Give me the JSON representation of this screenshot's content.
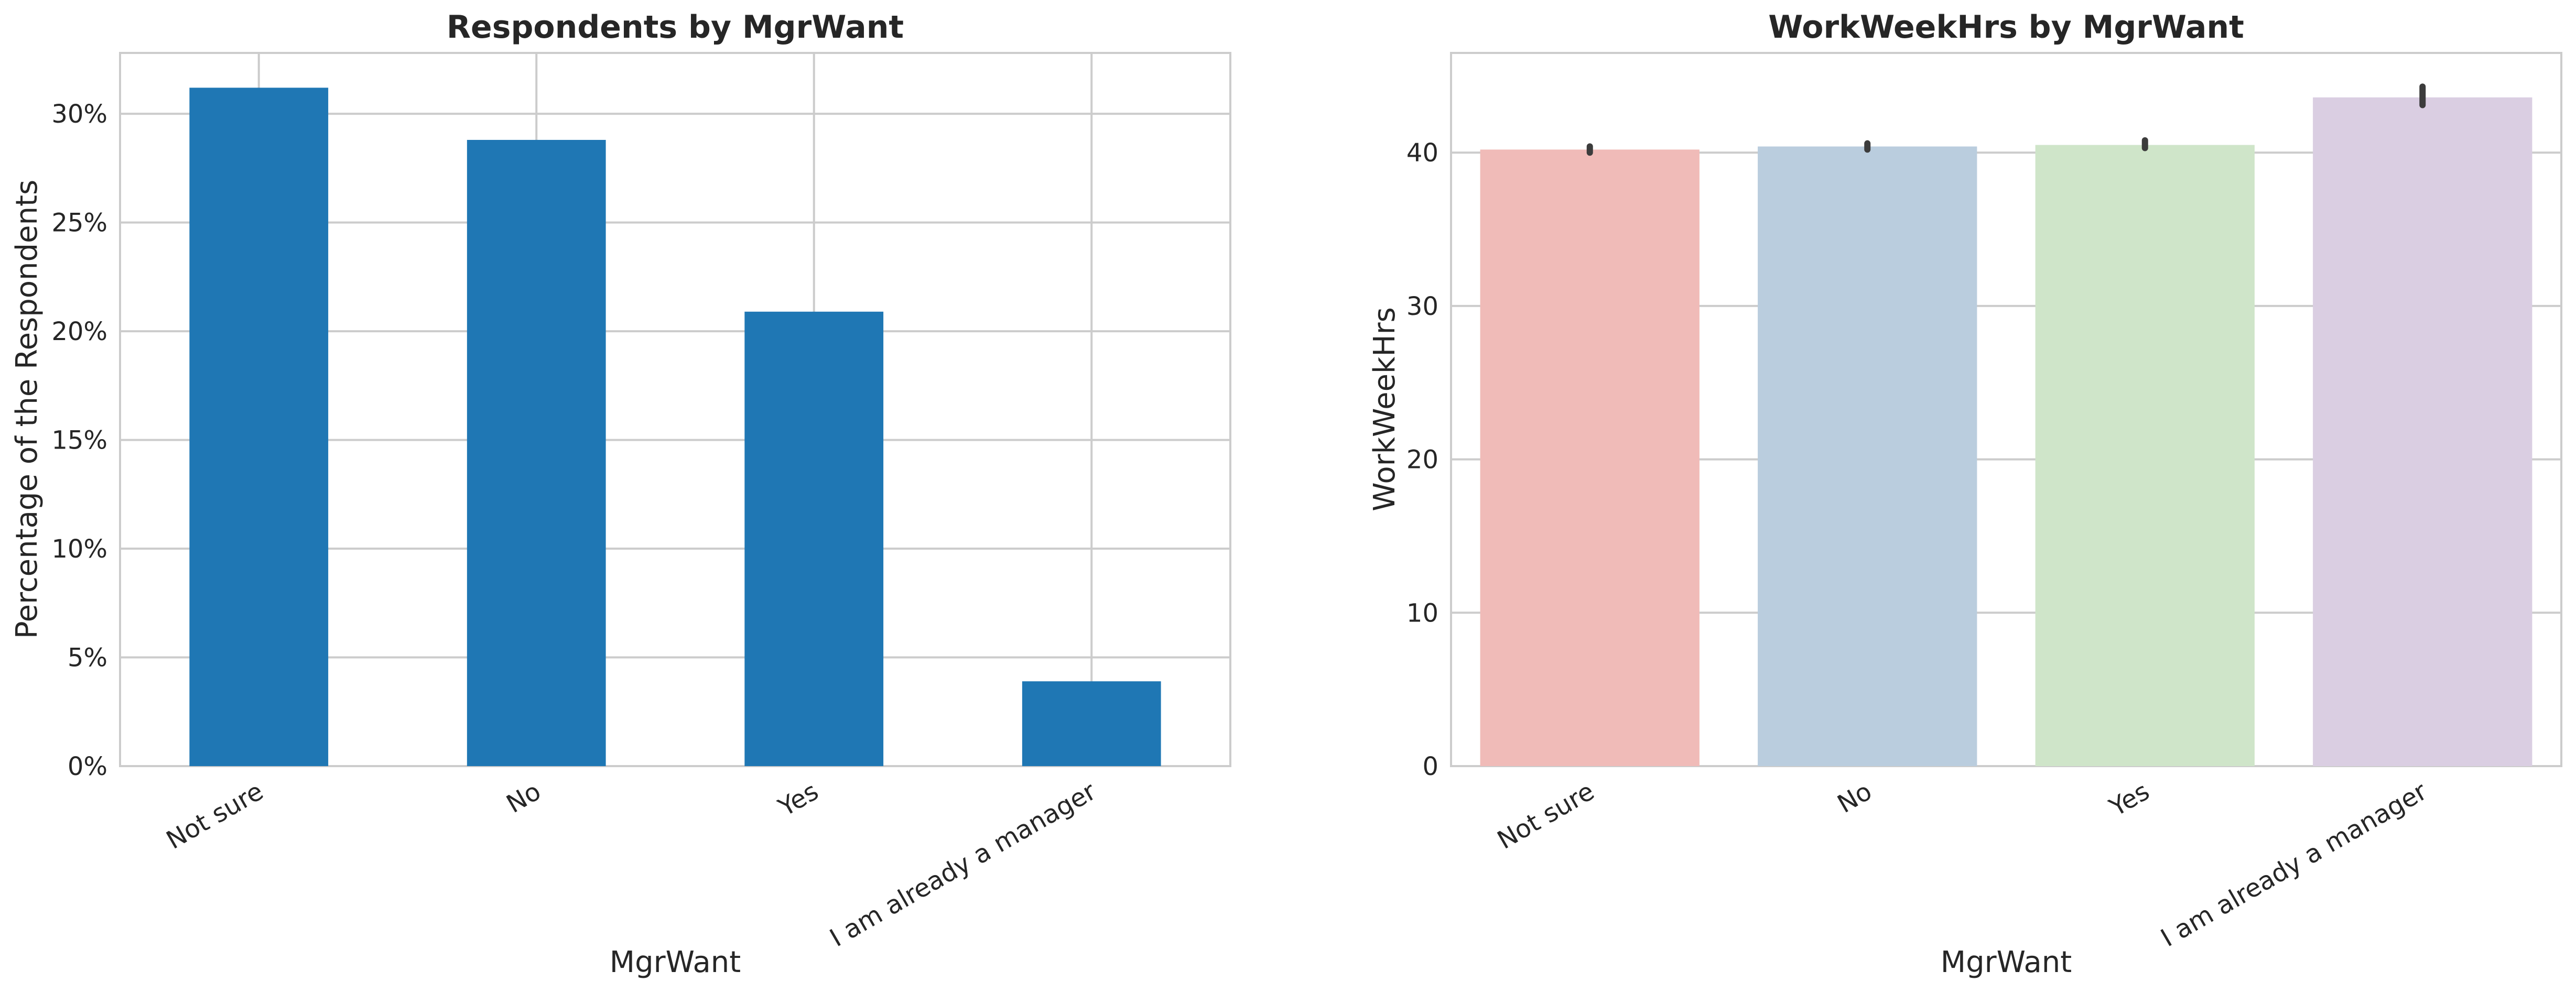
{
  "chart_data": [
    {
      "type": "bar",
      "title": "Respondents by MgrWant",
      "xlabel": "MgrWant",
      "ylabel": "Percentage of the Respondents",
      "categories": [
        "Not sure",
        "No",
        "Yes",
        "I am already a manager"
      ],
      "values": [
        31.2,
        28.8,
        20.9,
        3.9
      ],
      "ylim": [
        0,
        32.8
      ],
      "yticks": [
        0,
        5,
        10,
        15,
        20,
        25,
        30
      ],
      "ytick_labels": [
        "0%",
        "5%",
        "10%",
        "15%",
        "20%",
        "25%",
        "30%"
      ],
      "grid": true,
      "colors": [
        "#1f77b4",
        "#1f77b4",
        "#1f77b4",
        "#1f77b4"
      ]
    },
    {
      "type": "bar",
      "title": "WorkWeekHrs by MgrWant",
      "xlabel": "MgrWant",
      "ylabel": "WorkWeekHrs",
      "categories": [
        "Not sure",
        "No",
        "Yes",
        "I am already a manager"
      ],
      "values": [
        40.2,
        40.4,
        40.5,
        43.6
      ],
      "error_low": [
        40.0,
        40.2,
        40.3,
        43.1
      ],
      "error_high": [
        40.4,
        40.6,
        40.8,
        44.3
      ],
      "ylim": [
        0,
        46.5
      ],
      "yticks": [
        0,
        10,
        20,
        30,
        40
      ],
      "ytick_labels": [
        "0",
        "10",
        "20",
        "30",
        "40"
      ],
      "grid": true,
      "colors": [
        "#f0bbb8",
        "#bacdde",
        "#cfe5c9",
        "#dacee2"
      ]
    }
  ]
}
